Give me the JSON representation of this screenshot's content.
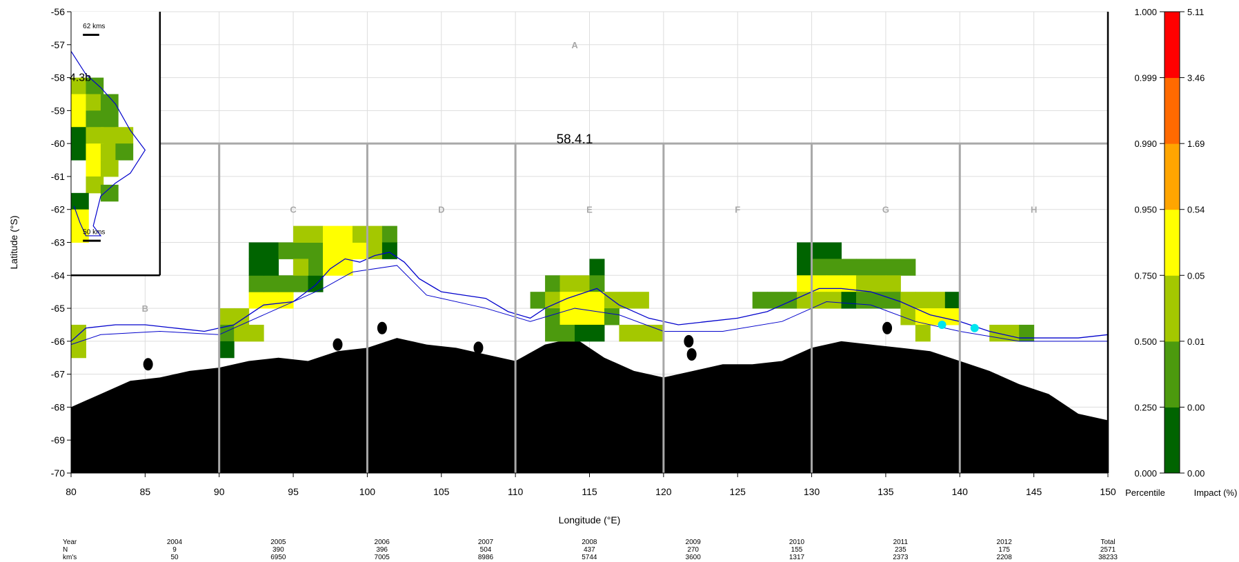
{
  "map": {
    "x_axis_label": "Longitude (°E)",
    "y_axis_label": "Latitude (°S)",
    "x_ticks": [
      80,
      85,
      90,
      95,
      100,
      105,
      110,
      115,
      120,
      125,
      130,
      135,
      140,
      145,
      150
    ],
    "y_ticks": [
      -56,
      -57,
      -58,
      -59,
      -60,
      -61,
      -62,
      -63,
      -64,
      -65,
      -66,
      -67,
      -68,
      -69,
      -70
    ],
    "x_range": [
      80,
      150
    ],
    "y_range": [
      -70,
      -56
    ],
    "region_label": "58.4.1",
    "inset_label": "4.3b",
    "scale_bar_top": "62 kms",
    "scale_bar_bottom": "50 kms",
    "sub_areas": [
      {
        "label": "A",
        "lon": 114.0,
        "lat": -57
      },
      {
        "label": "B",
        "lon": 85.0,
        "lat": -65
      },
      {
        "label": "C",
        "lon": 95.0,
        "lat": -62
      },
      {
        "label": "D",
        "lon": 105.0,
        "lat": -62
      },
      {
        "label": "E",
        "lon": 115.0,
        "lat": -62
      },
      {
        "label": "F",
        "lon": 125.0,
        "lat": -62
      },
      {
        "label": "G",
        "lon": 135.0,
        "lat": -62
      },
      {
        "label": "H",
        "lon": 145.0,
        "lat": -62
      }
    ],
    "land_color": "#000000",
    "coastline_color": "#0000cc",
    "highlight_color": "#00e5ee"
  },
  "colorbar": {
    "percentile_label": "Percentile",
    "impact_label": "Impact (%)",
    "percentile_ticks": [
      "0.000",
      "0.250",
      "0.500",
      "0.750",
      "0.950",
      "0.990",
      "0.999",
      "1.000"
    ],
    "impact_ticks": [
      "0.00",
      "0.00",
      "0.01",
      "0.05",
      "0.54",
      "1.69",
      "3.46",
      "5.11"
    ],
    "class_colors": [
      "#006400",
      "#4c9a0e",
      "#a4c800",
      "#ffff00",
      "#ffa500",
      "#ff6a00",
      "#ff0000"
    ]
  },
  "grid_cells": [
    {
      "lon": 80.5,
      "lat": -65.75,
      "color": "#a4c800"
    },
    {
      "lon": 80.5,
      "lat": -66.25,
      "color": "#a4c800"
    },
    {
      "lon": 90.5,
      "lat": -65.25,
      "color": "#a4c800"
    },
    {
      "lon": 91.5,
      "lat": -65.25,
      "color": "#a4c800"
    },
    {
      "lon": 90.5,
      "lat": -65.75,
      "color": "#4c9a0e"
    },
    {
      "lon": 91.5,
      "lat": -65.75,
      "color": "#a4c800"
    },
    {
      "lon": 92.5,
      "lat": -65.75,
      "color": "#a4c800"
    },
    {
      "lon": 90.5,
      "lat": -66.25,
      "color": "#006400"
    },
    {
      "lon": 93.5,
      "lat": -64.75,
      "color": "#ffff00"
    },
    {
      "lon": 92.5,
      "lat": -64.75,
      "color": "#ffff00"
    },
    {
      "lon": 94.5,
      "lat": -64.75,
      "color": "#ffff00"
    },
    {
      "lon": 92.5,
      "lat": -64.25,
      "color": "#4c9a0e"
    },
    {
      "lon": 93.5,
      "lat": -64.25,
      "color": "#4c9a0e"
    },
    {
      "lon": 94.5,
      "lat": -64.25,
      "color": "#4c9a0e"
    },
    {
      "lon": 92.5,
      "lat": -63.75,
      "color": "#006400"
    },
    {
      "lon": 93.5,
      "lat": -63.75,
      "color": "#006400"
    },
    {
      "lon": 92.5,
      "lat": -63.25,
      "color": "#006400"
    },
    {
      "lon": 93.5,
      "lat": -63.25,
      "color": "#006400"
    },
    {
      "lon": 94.5,
      "lat": -63.25,
      "color": "#4c9a0e"
    },
    {
      "lon": 95.5,
      "lat": -63.25,
      "color": "#4c9a0e"
    },
    {
      "lon": 96.5,
      "lat": -63.25,
      "color": "#4c9a0e"
    },
    {
      "lon": 95.5,
      "lat": -64.25,
      "color": "#4c9a0e"
    },
    {
      "lon": 96.5,
      "lat": -64.25,
      "color": "#006400"
    },
    {
      "lon": 96.5,
      "lat": -63.75,
      "color": "#4c9a0e"
    },
    {
      "lon": 95.5,
      "lat": -63.75,
      "color": "#a4c800"
    },
    {
      "lon": 95.5,
      "lat": -62.75,
      "color": "#a4c800"
    },
    {
      "lon": 96.5,
      "lat": -62.75,
      "color": "#a4c800"
    },
    {
      "lon": 97.5,
      "lat": -62.75,
      "color": "#ffff00"
    },
    {
      "lon": 98.5,
      "lat": -62.75,
      "color": "#ffff00"
    },
    {
      "lon": 97.5,
      "lat": -63.25,
      "color": "#ffff00"
    },
    {
      "lon": 98.5,
      "lat": -63.25,
      "color": "#ffff00"
    },
    {
      "lon": 97.5,
      "lat": -63.75,
      "color": "#ffff00"
    },
    {
      "lon": 98.5,
      "lat": -63.75,
      "color": "#ffff00"
    },
    {
      "lon": 99.5,
      "lat": -63.25,
      "color": "#ffff00"
    },
    {
      "lon": 99.5,
      "lat": -62.75,
      "color": "#a4c800"
    },
    {
      "lon": 100.5,
      "lat": -62.75,
      "color": "#a4c800"
    },
    {
      "lon": 101.5,
      "lat": -62.75,
      "color": "#4c9a0e"
    },
    {
      "lon": 100.5,
      "lat": -63.25,
      "color": "#a4c800"
    },
    {
      "lon": 101.5,
      "lat": -63.25,
      "color": "#006400"
    },
    {
      "lon": 111.5,
      "lat": -64.75,
      "color": "#4c9a0e"
    },
    {
      "lon": 112.5,
      "lat": -64.25,
      "color": "#4c9a0e"
    },
    {
      "lon": 113.5,
      "lat": -64.25,
      "color": "#a4c800"
    },
    {
      "lon": 114.5,
      "lat": -64.25,
      "color": "#a4c800"
    },
    {
      "lon": 115.5,
      "lat": -63.75,
      "color": "#006400"
    },
    {
      "lon": 115.5,
      "lat": -64.25,
      "color": "#4c9a0e"
    },
    {
      "lon": 112.5,
      "lat": -64.75,
      "color": "#a4c800"
    },
    {
      "lon": 113.5,
      "lat": -64.75,
      "color": "#ffff00"
    },
    {
      "lon": 114.5,
      "lat": -64.75,
      "color": "#ffff00"
    },
    {
      "lon": 115.5,
      "lat": -64.75,
      "color": "#ffff00"
    },
    {
      "lon": 116.5,
      "lat": -64.75,
      "color": "#a4c800"
    },
    {
      "lon": 117.5,
      "lat": -64.75,
      "color": "#a4c800"
    },
    {
      "lon": 118.5,
      "lat": -64.75,
      "color": "#a4c800"
    },
    {
      "lon": 112.5,
      "lat": -65.25,
      "color": "#4c9a0e"
    },
    {
      "lon": 113.5,
      "lat": -65.25,
      "color": "#ffff00"
    },
    {
      "lon": 114.5,
      "lat": -65.25,
      "color": "#ffff00"
    },
    {
      "lon": 115.5,
      "lat": -65.25,
      "color": "#ffff00"
    },
    {
      "lon": 116.5,
      "lat": -65.25,
      "color": "#4c9a0e"
    },
    {
      "lon": 112.5,
      "lat": -65.75,
      "color": "#4c9a0e"
    },
    {
      "lon": 113.5,
      "lat": -65.75,
      "color": "#4c9a0e"
    },
    {
      "lon": 114.5,
      "lat": -65.75,
      "color": "#006400"
    },
    {
      "lon": 115.5,
      "lat": -65.75,
      "color": "#006400"
    },
    {
      "lon": 117.5,
      "lat": -65.75,
      "color": "#a4c800"
    },
    {
      "lon": 118.5,
      "lat": -65.75,
      "color": "#a4c800"
    },
    {
      "lon": 119.5,
      "lat": -65.75,
      "color": "#a4c800"
    },
    {
      "lon": 126.5,
      "lat": -64.75,
      "color": "#4c9a0e"
    },
    {
      "lon": 127.5,
      "lat": -64.75,
      "color": "#4c9a0e"
    },
    {
      "lon": 128.5,
      "lat": -64.75,
      "color": "#4c9a0e"
    },
    {
      "lon": 129.5,
      "lat": -63.25,
      "color": "#006400"
    },
    {
      "lon": 130.5,
      "lat": -63.25,
      "color": "#006400"
    },
    {
      "lon": 131.5,
      "lat": -63.25,
      "color": "#006400"
    },
    {
      "lon": 129.5,
      "lat": -63.75,
      "color": "#006400"
    },
    {
      "lon": 130.5,
      "lat": -63.75,
      "color": "#4c9a0e"
    },
    {
      "lon": 131.5,
      "lat": -63.75,
      "color": "#4c9a0e"
    },
    {
      "lon": 132.5,
      "lat": -63.75,
      "color": "#4c9a0e"
    },
    {
      "lon": 133.5,
      "lat": -63.75,
      "color": "#4c9a0e"
    },
    {
      "lon": 134.5,
      "lat": -63.75,
      "color": "#4c9a0e"
    },
    {
      "lon": 135.5,
      "lat": -63.75,
      "color": "#4c9a0e"
    },
    {
      "lon": 136.5,
      "lat": -63.75,
      "color": "#4c9a0e"
    },
    {
      "lon": 129.5,
      "lat": -64.25,
      "color": "#ffff00"
    },
    {
      "lon": 130.5,
      "lat": -64.25,
      "color": "#ffff00"
    },
    {
      "lon": 131.5,
      "lat": -64.25,
      "color": "#ffff00"
    },
    {
      "lon": 132.5,
      "lat": -64.25,
      "color": "#ffff00"
    },
    {
      "lon": 133.5,
      "lat": -64.25,
      "color": "#a4c800"
    },
    {
      "lon": 134.5,
      "lat": -64.25,
      "color": "#a4c800"
    },
    {
      "lon": 135.5,
      "lat": -64.25,
      "color": "#a4c800"
    },
    {
      "lon": 129.5,
      "lat": -64.75,
      "color": "#a4c800"
    },
    {
      "lon": 130.5,
      "lat": -64.75,
      "color": "#a4c800"
    },
    {
      "lon": 131.5,
      "lat": -64.75,
      "color": "#a4c800"
    },
    {
      "lon": 132.5,
      "lat": -64.75,
      "color": "#006400"
    },
    {
      "lon": 133.5,
      "lat": -64.75,
      "color": "#4c9a0e"
    },
    {
      "lon": 134.5,
      "lat": -64.75,
      "color": "#4c9a0e"
    },
    {
      "lon": 135.5,
      "lat": -64.75,
      "color": "#4c9a0e"
    },
    {
      "lon": 136.5,
      "lat": -64.75,
      "color": "#a4c800"
    },
    {
      "lon": 137.5,
      "lat": -64.75,
      "color": "#a4c800"
    },
    {
      "lon": 138.5,
      "lat": -64.75,
      "color": "#a4c800"
    },
    {
      "lon": 139.5,
      "lat": -64.75,
      "color": "#006400"
    },
    {
      "lon": 136.5,
      "lat": -65.25,
      "color": "#a4c800"
    },
    {
      "lon": 137.5,
      "lat": -65.25,
      "color": "#ffff00"
    },
    {
      "lon": 138.5,
      "lat": -65.25,
      "color": "#ffff00"
    },
    {
      "lon": 139.5,
      "lat": -65.25,
      "color": "#ffff00"
    },
    {
      "lon": 137.5,
      "lat": -65.75,
      "color": "#a4c800"
    },
    {
      "lon": 142.5,
      "lat": -65.75,
      "color": "#a4c800"
    },
    {
      "lon": 143.5,
      "lat": -65.75,
      "color": "#a4c800"
    },
    {
      "lon": 144.5,
      "lat": -65.75,
      "color": "#4c9a0e"
    }
  ],
  "inset_cells": [
    {
      "lon": 80.5,
      "lat": -58.25,
      "color": "#a4c800"
    },
    {
      "lon": 81.5,
      "lat": -58.25,
      "color": "#4c9a0e"
    },
    {
      "lon": 80.5,
      "lat": -58.75,
      "color": "#ffff00"
    },
    {
      "lon": 81.5,
      "lat": -58.75,
      "color": "#a4c800"
    },
    {
      "lon": 82.5,
      "lat": -58.75,
      "color": "#4c9a0e"
    },
    {
      "lon": 80.5,
      "lat": -59.25,
      "color": "#ffff00"
    },
    {
      "lon": 81.5,
      "lat": -59.25,
      "color": "#4c9a0e"
    },
    {
      "lon": 82.5,
      "lat": -59.25,
      "color": "#4c9a0e"
    },
    {
      "lon": 80.5,
      "lat": -59.75,
      "color": "#006400"
    },
    {
      "lon": 81.5,
      "lat": -59.75,
      "color": "#a4c800"
    },
    {
      "lon": 82.5,
      "lat": -59.75,
      "color": "#a4c800"
    },
    {
      "lon": 83.5,
      "lat": -59.75,
      "color": "#a4c800"
    },
    {
      "lon": 80.5,
      "lat": -60.25,
      "color": "#006400"
    },
    {
      "lon": 81.5,
      "lat": -60.25,
      "color": "#ffff00"
    },
    {
      "lon": 82.5,
      "lat": -60.25,
      "color": "#a4c800"
    },
    {
      "lon": 83.5,
      "lat": -60.25,
      "color": "#4c9a0e"
    },
    {
      "lon": 81.5,
      "lat": -60.75,
      "color": "#ffff00"
    },
    {
      "lon": 82.5,
      "lat": -60.75,
      "color": "#a4c800"
    },
    {
      "lon": 81.5,
      "lat": -61.25,
      "color": "#a4c800"
    },
    {
      "lon": 82.5,
      "lat": -61.5,
      "color": "#4c9a0e"
    },
    {
      "lon": 80.5,
      "lat": -61.75,
      "color": "#006400"
    },
    {
      "lon": 80.5,
      "lat": -62.25,
      "color": "#ffff00"
    },
    {
      "lon": 80.5,
      "lat": -62.75,
      "color": "#ffff00"
    }
  ],
  "highlight_points": [
    {
      "lon": 138.8,
      "lat": -65.5
    },
    {
      "lon": 141.0,
      "lat": -65.6
    }
  ],
  "summary_table": {
    "row_labels": [
      "Year",
      "N",
      "km's"
    ],
    "columns": [
      {
        "year": "2004",
        "n": "9",
        "kms": "50"
      },
      {
        "year": "2005",
        "n": "390",
        "kms": "6950"
      },
      {
        "year": "2006",
        "n": "396",
        "kms": "7005"
      },
      {
        "year": "2007",
        "n": "504",
        "kms": "8986"
      },
      {
        "year": "2008",
        "n": "437",
        "kms": "5744"
      },
      {
        "year": "2009",
        "n": "270",
        "kms": "3600"
      },
      {
        "year": "2010",
        "n": "155",
        "kms": "1317"
      },
      {
        "year": "2011",
        "n": "235",
        "kms": "2373"
      },
      {
        "year": "2012",
        "n": "175",
        "kms": "2208"
      },
      {
        "year": "Total",
        "n": "2571",
        "kms": "38233"
      }
    ]
  }
}
